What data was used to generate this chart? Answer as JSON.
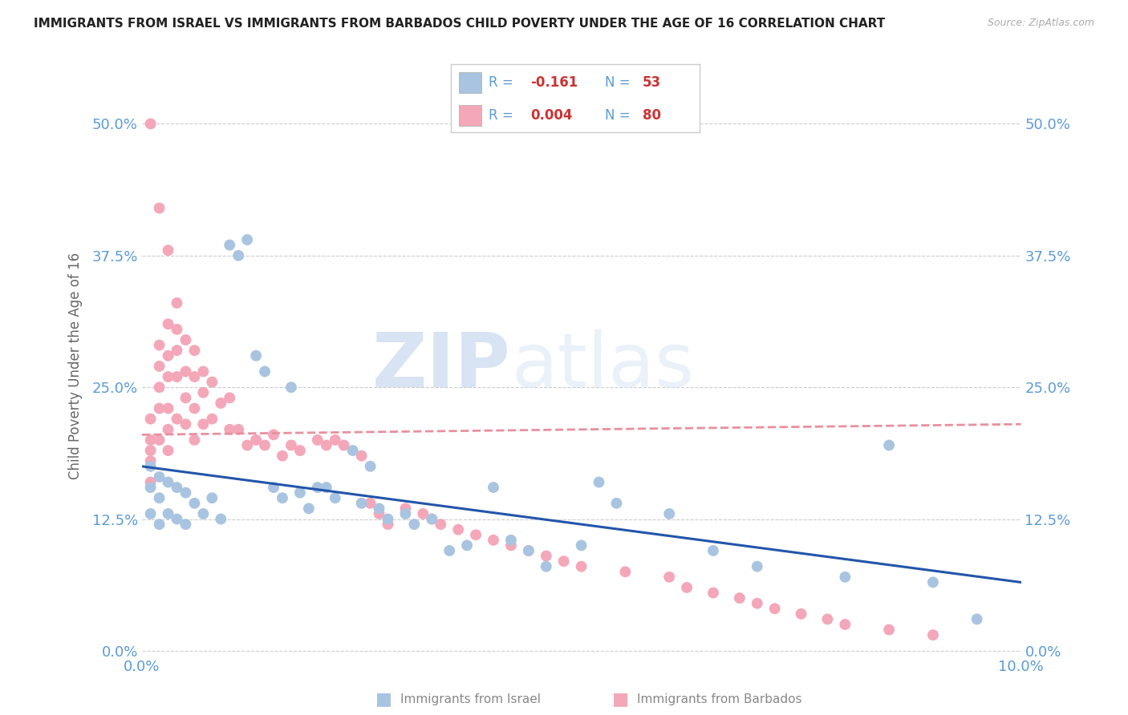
{
  "title": "IMMIGRANTS FROM ISRAEL VS IMMIGRANTS FROM BARBADOS CHILD POVERTY UNDER THE AGE OF 16 CORRELATION CHART",
  "source": "Source: ZipAtlas.com",
  "ylabel": "Child Poverty Under the Age of 16",
  "xlim": [
    0.0,
    0.1
  ],
  "ylim": [
    -0.005,
    0.545
  ],
  "yticks": [
    0.0,
    0.125,
    0.25,
    0.375,
    0.5
  ],
  "ytick_labels": [
    "0.0%",
    "12.5%",
    "25.0%",
    "37.5%",
    "50.0%"
  ],
  "xticks": [
    0.0,
    0.02,
    0.04,
    0.06,
    0.08,
    0.1
  ],
  "xtick_labels": [
    "0.0%",
    "",
    "",
    "",
    "",
    "10.0%"
  ],
  "israel_color": "#a8c4e0",
  "barbados_color": "#f4a7b9",
  "israel_line_color": "#2255aa",
  "barbados_line_color": "#e8909f",
  "israel_R": -0.161,
  "israel_N": 53,
  "barbados_R": 0.004,
  "barbados_N": 80,
  "background_color": "#ffffff",
  "grid_color": "#cccccc",
  "title_color": "#222222",
  "axis_label_color": "#666666",
  "tick_color": "#5b9bd5",
  "watermark_zip": "ZIP",
  "watermark_atlas": "atlas",
  "legend_R_color": "#cc3333",
  "legend_label_color": "#5b9bd5",
  "israel_line_y0": 0.175,
  "israel_line_y1": 0.065,
  "barbados_line_y0": 0.205,
  "barbados_line_y1": 0.215,
  "israel_x": [
    0.001,
    0.001,
    0.001,
    0.002,
    0.002,
    0.002,
    0.003,
    0.003,
    0.004,
    0.004,
    0.005,
    0.005,
    0.006,
    0.007,
    0.008,
    0.009,
    0.01,
    0.011,
    0.012,
    0.013,
    0.014,
    0.015,
    0.016,
    0.017,
    0.018,
    0.019,
    0.02,
    0.021,
    0.022,
    0.024,
    0.025,
    0.026,
    0.027,
    0.028,
    0.03,
    0.031,
    0.033,
    0.035,
    0.037,
    0.04,
    0.042,
    0.044,
    0.046,
    0.05,
    0.052,
    0.054,
    0.06,
    0.065,
    0.07,
    0.08,
    0.085,
    0.09,
    0.095
  ],
  "israel_y": [
    0.175,
    0.155,
    0.13,
    0.165,
    0.145,
    0.12,
    0.16,
    0.13,
    0.155,
    0.125,
    0.15,
    0.12,
    0.14,
    0.13,
    0.145,
    0.125,
    0.385,
    0.375,
    0.39,
    0.28,
    0.265,
    0.155,
    0.145,
    0.25,
    0.15,
    0.135,
    0.155,
    0.155,
    0.145,
    0.19,
    0.14,
    0.175,
    0.135,
    0.125,
    0.13,
    0.12,
    0.125,
    0.095,
    0.1,
    0.155,
    0.105,
    0.095,
    0.08,
    0.1,
    0.16,
    0.14,
    0.13,
    0.095,
    0.08,
    0.07,
    0.195,
    0.065,
    0.03
  ],
  "barbados_x": [
    0.001,
    0.001,
    0.001,
    0.001,
    0.001,
    0.001,
    0.002,
    0.002,
    0.002,
    0.002,
    0.002,
    0.002,
    0.003,
    0.003,
    0.003,
    0.003,
    0.003,
    0.003,
    0.003,
    0.004,
    0.004,
    0.004,
    0.004,
    0.004,
    0.005,
    0.005,
    0.005,
    0.005,
    0.006,
    0.006,
    0.006,
    0.006,
    0.007,
    0.007,
    0.007,
    0.008,
    0.008,
    0.009,
    0.01,
    0.01,
    0.011,
    0.012,
    0.013,
    0.014,
    0.015,
    0.016,
    0.017,
    0.018,
    0.02,
    0.021,
    0.022,
    0.023,
    0.025,
    0.026,
    0.027,
    0.028,
    0.03,
    0.032,
    0.033,
    0.034,
    0.036,
    0.038,
    0.04,
    0.042,
    0.044,
    0.046,
    0.048,
    0.05,
    0.055,
    0.06,
    0.062,
    0.065,
    0.068,
    0.07,
    0.072,
    0.075,
    0.078,
    0.08,
    0.085,
    0.09
  ],
  "barbados_y": [
    0.5,
    0.22,
    0.2,
    0.19,
    0.18,
    0.16,
    0.42,
    0.29,
    0.27,
    0.25,
    0.23,
    0.2,
    0.38,
    0.31,
    0.28,
    0.26,
    0.23,
    0.21,
    0.19,
    0.33,
    0.305,
    0.285,
    0.26,
    0.22,
    0.295,
    0.265,
    0.24,
    0.215,
    0.285,
    0.26,
    0.23,
    0.2,
    0.265,
    0.245,
    0.215,
    0.255,
    0.22,
    0.235,
    0.24,
    0.21,
    0.21,
    0.195,
    0.2,
    0.195,
    0.205,
    0.185,
    0.195,
    0.19,
    0.2,
    0.195,
    0.2,
    0.195,
    0.185,
    0.14,
    0.13,
    0.12,
    0.135,
    0.13,
    0.125,
    0.12,
    0.115,
    0.11,
    0.105,
    0.1,
    0.095,
    0.09,
    0.085,
    0.08,
    0.075,
    0.07,
    0.06,
    0.055,
    0.05,
    0.045,
    0.04,
    0.035,
    0.03,
    0.025,
    0.02,
    0.015
  ]
}
